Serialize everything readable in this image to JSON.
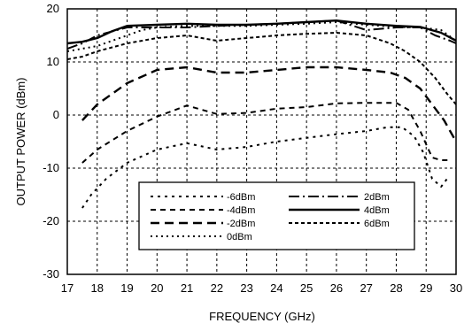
{
  "chart_data": {
    "type": "line",
    "xlabel": "FREQUENCY (GHz)",
    "ylabel": "OUTPUT POWER (dBm)",
    "xlim": [
      17,
      30
    ],
    "ylim": [
      -30,
      20
    ],
    "xticks": [
      "17",
      "18",
      "19",
      "20",
      "21",
      "22",
      "23",
      "24",
      "25",
      "26",
      "27",
      "28",
      "29",
      "30"
    ],
    "yticks": [
      "20",
      "10",
      "0",
      "-10",
      "-20",
      "-30"
    ],
    "grid": true,
    "legend_position": "bottom-center",
    "series": [
      {
        "name": "-6dBm",
        "dash": "3,5",
        "width": 2,
        "points": [
          [
            17.5,
            -17.5
          ],
          [
            17.8,
            -15
          ],
          [
            18.3,
            -12
          ],
          [
            19,
            -9
          ],
          [
            20,
            -6.5
          ],
          [
            21,
            -5.3
          ],
          [
            22,
            -6.5
          ],
          [
            23,
            -6
          ],
          [
            24,
            -5
          ],
          [
            25,
            -4.3
          ],
          [
            26,
            -3.6
          ],
          [
            27,
            -3
          ],
          [
            27.7,
            -2.3
          ],
          [
            28.2,
            -2.3
          ],
          [
            28.6,
            -4
          ],
          [
            28.9,
            -7
          ],
          [
            29.2,
            -12
          ],
          [
            29.5,
            -13.5
          ],
          [
            29.7,
            -12
          ]
        ]
      },
      {
        "name": "-4dBm",
        "dash": "6,5",
        "width": 2,
        "points": [
          [
            17.5,
            -9
          ],
          [
            18,
            -6.5
          ],
          [
            19,
            -3
          ],
          [
            20,
            -0.3
          ],
          [
            21,
            1.8
          ],
          [
            22,
            0.2
          ],
          [
            23,
            0.4
          ],
          [
            24,
            1.2
          ],
          [
            25,
            1.5
          ],
          [
            26,
            2.2
          ],
          [
            27,
            2.3
          ],
          [
            28,
            2.3
          ],
          [
            28.4,
            1
          ],
          [
            28.8,
            -3
          ],
          [
            29.2,
            -8
          ],
          [
            29.5,
            -8.5
          ],
          [
            29.8,
            -8.5
          ]
        ]
      },
      {
        "name": "-2dBm",
        "dash": "10,6",
        "width": 2.4,
        "points": [
          [
            17.5,
            -1
          ],
          [
            18,
            2
          ],
          [
            19,
            6
          ],
          [
            20,
            8.5
          ],
          [
            21,
            9
          ],
          [
            22,
            8
          ],
          [
            23,
            8
          ],
          [
            24,
            8.5
          ],
          [
            25,
            9
          ],
          [
            26,
            9
          ],
          [
            27,
            8.5
          ],
          [
            27.8,
            8
          ],
          [
            28.3,
            7
          ],
          [
            28.8,
            5
          ],
          [
            29.2,
            2
          ],
          [
            29.6,
            -1
          ],
          [
            30,
            -5
          ]
        ]
      },
      {
        "name": "0dBm",
        "dash": "2,4",
        "width": 2,
        "points": [
          [
            17,
            12
          ],
          [
            17.5,
            12.5
          ],
          [
            18,
            13
          ],
          [
            18.5,
            14
          ],
          [
            19,
            15
          ],
          [
            19.5,
            16
          ],
          [
            20,
            16.5
          ],
          [
            21,
            16.8
          ],
          [
            22,
            16.8
          ],
          [
            23,
            16.8
          ],
          [
            24,
            17
          ],
          [
            25,
            17.2
          ],
          [
            26,
            17.5
          ],
          [
            27,
            17
          ],
          [
            28,
            16.6
          ],
          [
            28.8,
            16.5
          ],
          [
            29.5,
            16
          ],
          [
            30,
            14
          ]
        ]
      },
      {
        "name": "2dBm",
        "dash": "12,4,2,4",
        "width": 2,
        "points": [
          [
            17,
            12.5
          ],
          [
            17.5,
            13.5
          ],
          [
            18,
            15
          ],
          [
            19,
            16.5
          ],
          [
            20,
            16.5
          ],
          [
            21,
            16.5
          ],
          [
            22,
            16.8
          ],
          [
            23,
            17
          ],
          [
            24,
            17.2
          ],
          [
            25,
            17.5
          ],
          [
            26,
            17.8
          ],
          [
            27,
            16
          ],
          [
            28,
            16.5
          ],
          [
            28.8,
            16.5
          ],
          [
            29.3,
            15
          ],
          [
            29.8,
            14
          ],
          [
            30,
            13.5
          ]
        ]
      },
      {
        "name": "4dBm",
        "dash": "",
        "width": 2.4,
        "points": [
          [
            17,
            13.5
          ],
          [
            17.5,
            13.8
          ],
          [
            18,
            14.5
          ],
          [
            18.5,
            15.8
          ],
          [
            19,
            16.8
          ],
          [
            20,
            17
          ],
          [
            21,
            17.2
          ],
          [
            22,
            17
          ],
          [
            23,
            17
          ],
          [
            24,
            17.2
          ],
          [
            25,
            17.5
          ],
          [
            26,
            17.8
          ],
          [
            27,
            17.2
          ],
          [
            28,
            16.8
          ],
          [
            28.8,
            16.6
          ],
          [
            29.5,
            15.5
          ],
          [
            30,
            14
          ]
        ]
      },
      {
        "name": "6dBm",
        "dash": "4,3",
        "width": 2,
        "points": [
          [
            17,
            10.5
          ],
          [
            17.5,
            11
          ],
          [
            18,
            12
          ],
          [
            19,
            13.5
          ],
          [
            20,
            14.5
          ],
          [
            21,
            15
          ],
          [
            22,
            14
          ],
          [
            23,
            14.5
          ],
          [
            24,
            15
          ],
          [
            25,
            15.3
          ],
          [
            26,
            15.5
          ],
          [
            27,
            15
          ],
          [
            27.8,
            13.5
          ],
          [
            28.3,
            12
          ],
          [
            28.8,
            10
          ],
          [
            29.3,
            7
          ],
          [
            29.7,
            4
          ],
          [
            30,
            2
          ]
        ]
      }
    ]
  }
}
